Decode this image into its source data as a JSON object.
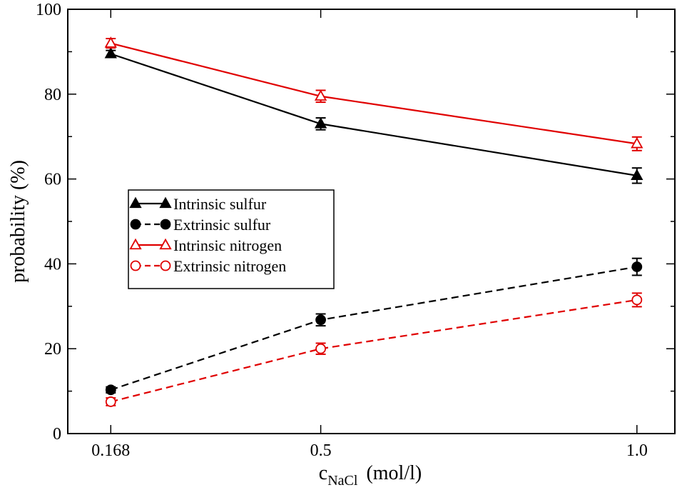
{
  "chart_data": {
    "type": "line",
    "title": "",
    "xlabel": {
      "main": "c",
      "subscript": "NaCl",
      "unit": "(mol/l)"
    },
    "ylabel": "probability (%)",
    "x_ticks": [
      {
        "value": 0.168,
        "label": "0.168"
      },
      {
        "value": 0.5,
        "label": "0.5"
      },
      {
        "value": 1.0,
        "label": "1.0"
      }
    ],
    "y_ticks": [
      0,
      20,
      40,
      60,
      80,
      100
    ],
    "xlim": [
      0.1,
      1.06
    ],
    "ylim": [
      0,
      100
    ],
    "grid": false,
    "legend_position": "middle-left",
    "series": [
      {
        "name": "Intrinsic sulfur",
        "color": "#000000",
        "dash": "solid",
        "marker": "triangle-filled",
        "x": [
          0.168,
          0.5,
          1.0
        ],
        "y": [
          89.5,
          73.0,
          60.8
        ],
        "err": [
          0.8,
          1.4,
          1.8
        ]
      },
      {
        "name": "Extrinsic sulfur",
        "color": "#000000",
        "dash": "dashed",
        "marker": "circle-filled",
        "x": [
          0.168,
          0.5,
          1.0
        ],
        "y": [
          10.3,
          26.8,
          39.3
        ],
        "err": [
          0.7,
          1.4,
          2.0
        ]
      },
      {
        "name": "Intrinsic nitrogen",
        "color": "#e00000",
        "dash": "solid",
        "marker": "triangle-open",
        "x": [
          0.168,
          0.5,
          1.0
        ],
        "y": [
          92.0,
          79.5,
          68.3
        ],
        "err": [
          1.1,
          1.4,
          1.6
        ]
      },
      {
        "name": "Extrinsic nitrogen",
        "color": "#e00000",
        "dash": "dashed",
        "marker": "circle-open",
        "x": [
          0.168,
          0.5,
          1.0
        ],
        "y": [
          7.5,
          20.0,
          31.5
        ],
        "err": [
          0.9,
          1.3,
          1.6
        ]
      }
    ]
  }
}
